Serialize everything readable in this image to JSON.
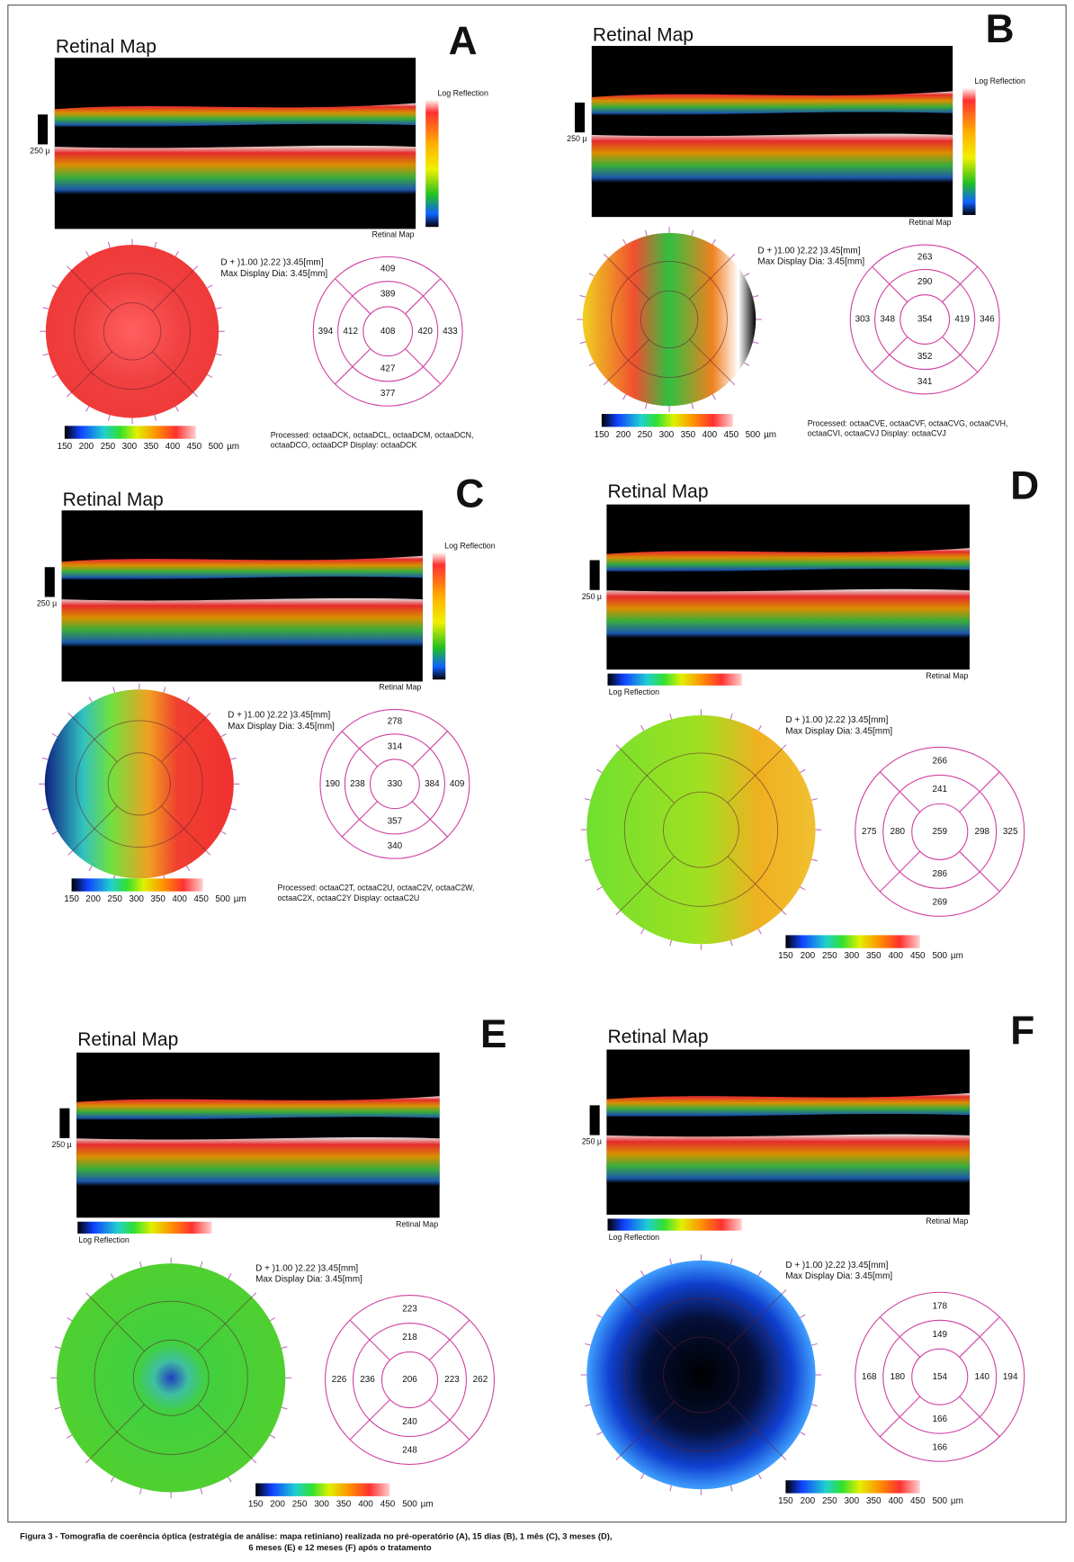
{
  "panels": [
    {
      "letter": "A",
      "title": "Retinal Map",
      "scale_label": "250 µ",
      "log_reflection": "Log Reflection",
      "retinal_map_label": "Retinal Map",
      "info": [
        "D +   )1.00   )2.22   )3.45[mm]",
        "Max Display Dia: 3.45[mm]"
      ],
      "sectors": {
        "center": 408,
        "inner": {
          "top": 389,
          "right": 420,
          "bottom": 427,
          "left": 412
        },
        "outer": {
          "top": 409,
          "right": 433,
          "bottom": 377,
          "left": 394
        }
      },
      "colorbar_ticks": [
        150,
        200,
        250,
        300,
        350,
        400,
        450,
        500
      ],
      "colorbar_unit": "µm",
      "processed": [
        "Processed: octaaDCK, octaaDCL, octaaDCM, octaaDCN,",
        "octaaDCO, octaaDCP Display: octaaDCK"
      ]
    },
    {
      "letter": "B",
      "title": "Retinal Map",
      "scale_label": "250 µ",
      "log_reflection": "Log Reflection",
      "retinal_map_label": "Retinal Map",
      "info": [
        "D +   )1.00   )2.22   )3.45[mm]",
        "Max Display Dia: 3.45[mm]"
      ],
      "sectors": {
        "center": 354,
        "inner": {
          "top": 290,
          "right": 419,
          "bottom": 352,
          "left": 348
        },
        "outer": {
          "top": 263,
          "right": 346,
          "bottom": 341,
          "left": 303
        }
      },
      "colorbar_ticks": [
        150,
        200,
        250,
        300,
        350,
        400,
        450,
        500
      ],
      "colorbar_unit": "µm",
      "processed": [
        "Processed: octaaCVE, octaaCVF, octaaCVG, octaaCVH,",
        "octaaCVI, octaaCVJ Display: octaaCVJ"
      ]
    },
    {
      "letter": "C",
      "title": "Retinal Map",
      "scale_label": "250 µ",
      "log_reflection": "Log Reflection",
      "retinal_map_label": "Retinal Map",
      "info": [
        "D +   )1.00   )2.22   )3.45[mm]",
        "Max Display Dia: 3.45[mm]"
      ],
      "sectors": {
        "center": 330,
        "inner": {
          "top": 314,
          "right": 384,
          "bottom": 357,
          "left": 238
        },
        "outer": {
          "top": 278,
          "right": 409,
          "bottom": 340,
          "left": 190
        }
      },
      "colorbar_ticks": [
        150,
        200,
        250,
        300,
        350,
        400,
        450,
        500
      ],
      "colorbar_unit": "µm",
      "processed": [
        "Processed: octaaC2T, octaaC2U, octaaC2V, octaaC2W,",
        "octaaC2X, octaaC2Y Display: octaaC2U"
      ]
    },
    {
      "letter": "D",
      "title": "Retinal Map",
      "scale_label": "250 µ",
      "log_reflection": "Log Reflection",
      "retinal_map_label": "Retinal Map",
      "info": [
        "D +   )1.00   )2.22   )3.45[mm]",
        "Max Display Dia: 3.45[mm]"
      ],
      "sectors": {
        "center": 259,
        "inner": {
          "top": 241,
          "right": 298,
          "bottom": 286,
          "left": 280
        },
        "outer": {
          "top": 266,
          "right": 325,
          "bottom": 269,
          "left": 275
        }
      },
      "colorbar_ticks": [
        150,
        200,
        250,
        300,
        350,
        400,
        450,
        500
      ],
      "colorbar_unit": "µm"
    },
    {
      "letter": "E",
      "title": "Retinal Map",
      "scale_label": "250 µ",
      "log_reflection": "Log Reflection",
      "retinal_map_label": "Retinal Map",
      "info": [
        "D +   )1.00   )2.22   )3.45[mm]",
        "Max Display Dia: 3.45[mm]"
      ],
      "sectors": {
        "center": 206,
        "inner": {
          "top": 218,
          "right": 223,
          "bottom": 240,
          "left": 236
        },
        "outer": {
          "top": 223,
          "right": 262,
          "bottom": 248,
          "left": 226
        }
      },
      "colorbar_ticks": [
        150,
        200,
        250,
        300,
        350,
        400,
        450,
        500
      ],
      "colorbar_unit": "µm"
    },
    {
      "letter": "F",
      "title": "Retinal Map",
      "scale_label": "250 µ",
      "log_reflection": "Log Reflection",
      "retinal_map_label": "Retinal Map",
      "info": [
        "D +   )1.00   )2.22   )3.45[mm]",
        "Max Display Dia: 3.45[mm]"
      ],
      "sectors": {
        "center": 154,
        "inner": {
          "top": 149,
          "right": 140,
          "bottom": 166,
          "left": 180
        },
        "outer": {
          "top": 178,
          "right": 194,
          "bottom": 166,
          "left": 168
        }
      },
      "colorbar_ticks": [
        150,
        200,
        250,
        300,
        350,
        400,
        450,
        500
      ],
      "colorbar_unit": "µm"
    }
  ],
  "caption": [
    "Figura 3 - Tomografia de coerência óptica (estratégia de análise: mapa retiniano) realizada no pré-operatório (A), 15 dias (B), 1 mês (C), 3 meses (D),",
    "6 meses (E) e 12 meses (F) após o tratamento"
  ]
}
